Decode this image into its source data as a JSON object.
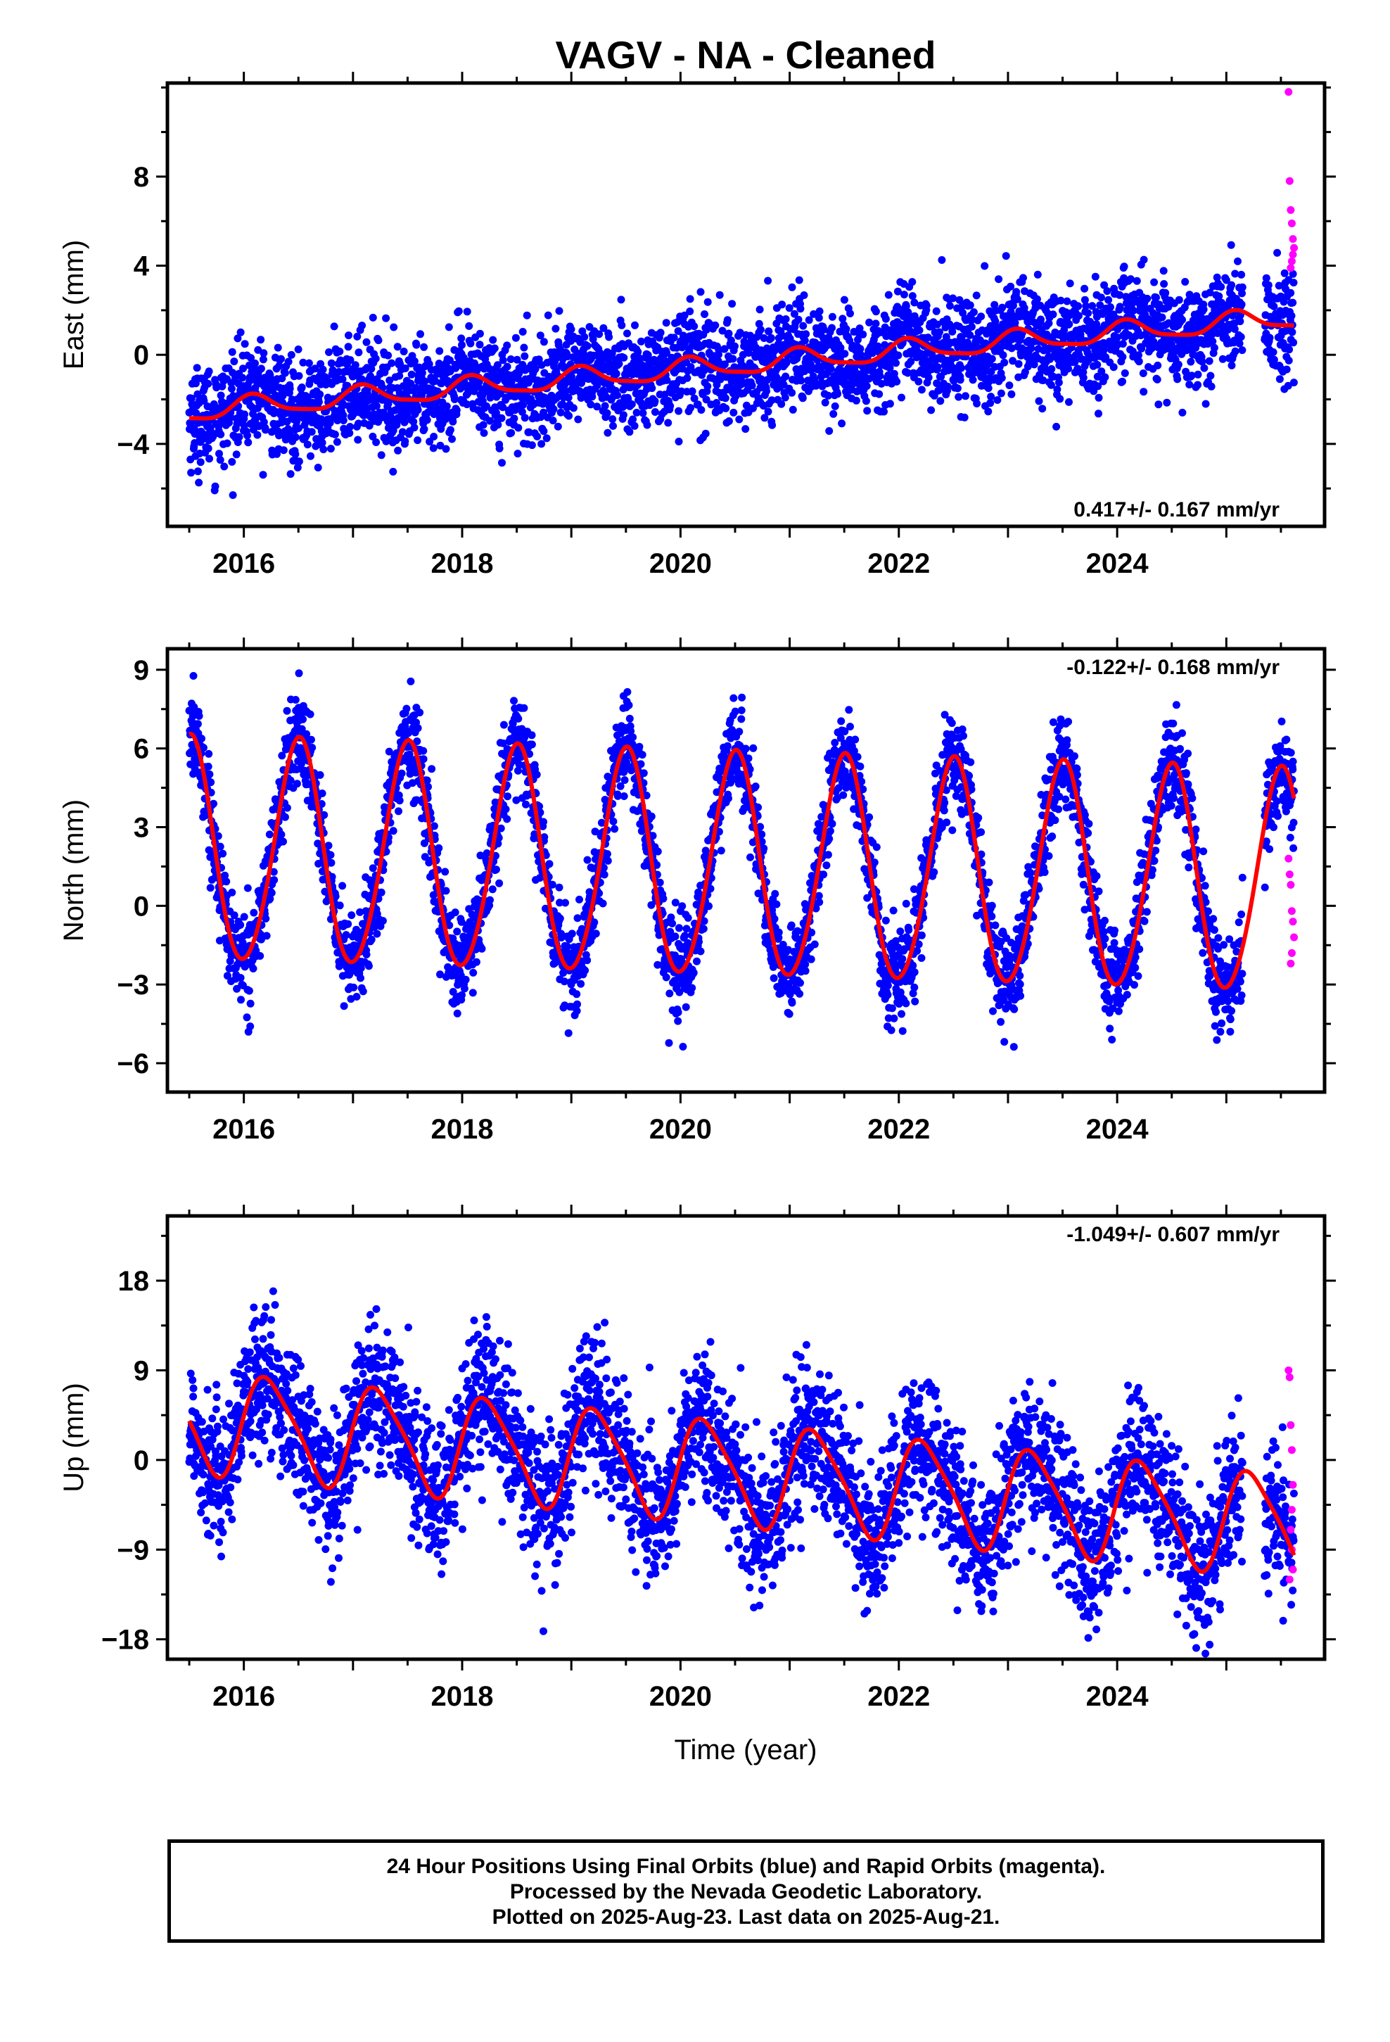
{
  "title": "VAGV  - NA - Cleaned",
  "xlabel": "Time (year)",
  "footer": {
    "line1": "24 Hour Positions Using Final Orbits (blue) and Rapid Orbits (magenta).",
    "line2": "Processed by the Nevada Geodetic Laboratory.",
    "line3": "Plotted on 2025-Aug-23. Last data on 2025-Aug-21."
  },
  "colors": {
    "final": "#0000ff",
    "rapid": "#ff00ff",
    "model": "#ff0000",
    "axis": "#000000"
  },
  "chart_data": [
    {
      "type": "scatter",
      "component": "east",
      "ylabel": "East (mm)",
      "rate_label": "0.417+/- 0.167 mm/yr",
      "xlim": [
        2015.3,
        2025.9
      ],
      "ylim": [
        -7.7,
        12.2
      ],
      "xticks": [
        2016,
        2018,
        2020,
        2022,
        2024
      ],
      "yticks": [
        -4,
        0,
        4,
        8
      ],
      "ytick_labels": [
        "−4",
        "0",
        "4",
        "8"
      ],
      "model": {
        "start": 2015.5,
        "end": 2025.62,
        "offset": -2.55,
        "trend": 0.417,
        "ref_year": 2015.5,
        "annual_amp": 0.45,
        "annual_phase": 1.0,
        "semiannual_amp": 0.12,
        "semiannual_phase": 0.8
      },
      "scatter": {
        "sigma": 1.15,
        "sampling_days": 1
      },
      "gaps": [
        [
          2025.15,
          2025.35
        ]
      ],
      "rapid_points": [
        [
          2025.57,
          11.8
        ],
        [
          2025.58,
          7.8
        ],
        [
          2025.59,
          6.5
        ],
        [
          2025.6,
          5.9
        ],
        [
          2025.61,
          5.2
        ],
        [
          2025.62,
          4.8
        ],
        [
          2025.6,
          4.2
        ],
        [
          2025.59,
          3.9
        ],
        [
          2025.61,
          4.5
        ]
      ]
    },
    {
      "type": "scatter",
      "component": "north",
      "ylabel": "North (mm)",
      "rate_label": "-0.122+/- 0.168 mm/yr",
      "xlim": [
        2015.3,
        2025.9
      ],
      "ylim": [
        -7.1,
        9.8
      ],
      "xticks": [
        2016,
        2018,
        2020,
        2022,
        2024
      ],
      "yticks": [
        -6,
        -3,
        0,
        3,
        6,
        9
      ],
      "ytick_labels": [
        "−6",
        "−3",
        "0",
        "3",
        "6",
        "9"
      ],
      "model": {
        "start": 2015.5,
        "end": 2025.62,
        "offset": 2.05,
        "trend": -0.122,
        "ref_year": 2015.5,
        "annual_amp": 4.25,
        "annual_phase": 4.712,
        "semiannual_amp": 0.3,
        "semiannual_phase": 1.0
      },
      "scatter": {
        "sigma": 0.9,
        "sampling_days": 1
      },
      "gaps": [
        [
          2025.15,
          2025.35
        ]
      ],
      "rapid_points": [
        [
          2025.57,
          1.8
        ],
        [
          2025.58,
          1.2
        ],
        [
          2025.59,
          0.8
        ],
        [
          2025.6,
          -0.2
        ],
        [
          2025.61,
          -0.6
        ],
        [
          2025.62,
          -1.2
        ],
        [
          2025.6,
          -1.8
        ],
        [
          2025.59,
          -2.2
        ]
      ]
    },
    {
      "type": "scatter",
      "component": "up",
      "ylabel": "Up (mm)",
      "rate_label": "-1.049+/- 0.607 mm/yr",
      "xlim": [
        2015.3,
        2025.9
      ],
      "ylim": [
        -20.0,
        24.5
      ],
      "xticks": [
        2016,
        2018,
        2020,
        2022,
        2024
      ],
      "yticks": [
        -18,
        -9,
        0,
        9,
        18
      ],
      "ytick_labels": [
        "−18",
        "−9",
        "0",
        "9",
        "18"
      ],
      "model": {
        "start": 2015.5,
        "end": 2025.62,
        "offset": 4.0,
        "trend": -1.049,
        "ref_year": 2015.5,
        "annual_amp": 5.0,
        "annual_phase": 0.1,
        "semiannual_amp": 0.9,
        "semiannual_phase": 0.5
      },
      "scatter": {
        "sigma": 3.6,
        "sampling_days": 1
      },
      "gaps": [
        [
          2025.15,
          2025.35
        ]
      ],
      "rapid_points": [
        [
          2025.57,
          9.0
        ],
        [
          2025.58,
          8.3
        ],
        [
          2025.59,
          3.5
        ],
        [
          2025.6,
          1.0
        ],
        [
          2025.61,
          -2.5
        ],
        [
          2025.6,
          -5.0
        ],
        [
          2025.59,
          -7.0
        ],
        [
          2025.6,
          -9.0
        ],
        [
          2025.61,
          -11.0
        ],
        [
          2025.58,
          -12.0
        ]
      ]
    }
  ]
}
